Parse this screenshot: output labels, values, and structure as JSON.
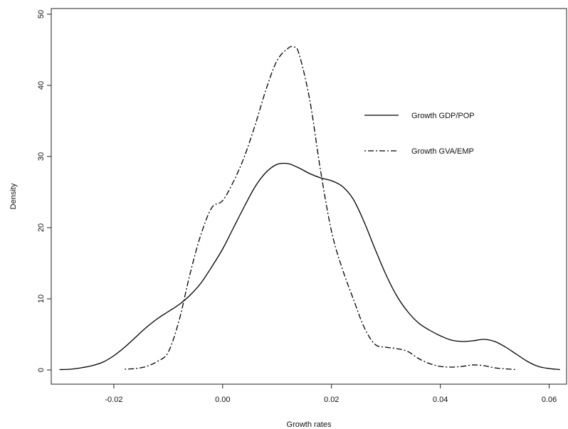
{
  "chart_data": {
    "type": "line",
    "title": "",
    "xlabel": "Growth rates",
    "ylabel": "Density",
    "xlim": [
      -0.0315,
      0.0632
    ],
    "ylim": [
      -2,
      50.8
    ],
    "x_ticks": [
      -0.02,
      0.0,
      0.02,
      0.04,
      0.06
    ],
    "x_tick_labels": [
      "-0.02",
      "0.00",
      "0.02",
      "0.04",
      "0.06"
    ],
    "y_ticks": [
      0,
      10,
      20,
      30,
      40,
      50
    ],
    "y_tick_labels": [
      "0",
      "10",
      "20",
      "30",
      "40",
      "50"
    ],
    "grid": false,
    "legend_position": "right",
    "series": [
      {
        "name": "Growth GDP/POP",
        "style": "solid",
        "color": "#000000",
        "x": [
          -0.03,
          -0.028,
          -0.026,
          -0.024,
          -0.022,
          -0.02,
          -0.018,
          -0.016,
          -0.014,
          -0.012,
          -0.01,
          -0.008,
          -0.006,
          -0.004,
          -0.002,
          0.0,
          0.002,
          0.004,
          0.006,
          0.008,
          0.01,
          0.012,
          0.014,
          0.016,
          0.018,
          0.02,
          0.022,
          0.024,
          0.026,
          0.028,
          0.03,
          0.032,
          0.034,
          0.036,
          0.038,
          0.04,
          0.042,
          0.044,
          0.046,
          0.048,
          0.05,
          0.052,
          0.054,
          0.056,
          0.058,
          0.06,
          0.062
        ],
        "y": [
          0.05,
          0.1,
          0.3,
          0.6,
          1.1,
          2.0,
          3.2,
          4.6,
          6.0,
          7.2,
          8.2,
          9.2,
          10.5,
          12.2,
          14.5,
          17.0,
          20.0,
          23.0,
          25.8,
          27.8,
          28.9,
          29.0,
          28.4,
          27.6,
          27.0,
          26.6,
          25.8,
          24.0,
          20.8,
          17.0,
          13.4,
          10.4,
          8.2,
          6.6,
          5.6,
          4.8,
          4.2,
          4.0,
          4.1,
          4.3,
          4.0,
          3.2,
          2.2,
          1.2,
          0.5,
          0.2,
          0.05
        ]
      },
      {
        "name": "Growth GVA/EMP",
        "style": "dotdash",
        "color": "#000000",
        "x": [
          -0.018,
          -0.016,
          -0.014,
          -0.012,
          -0.01,
          -0.008,
          -0.006,
          -0.004,
          -0.002,
          0.0,
          0.002,
          0.004,
          0.006,
          0.008,
          0.01,
          0.012,
          0.013,
          0.014,
          0.016,
          0.018,
          0.02,
          0.022,
          0.024,
          0.026,
          0.028,
          0.03,
          0.032,
          0.034,
          0.036,
          0.038,
          0.04,
          0.042,
          0.044,
          0.046,
          0.048,
          0.05,
          0.052,
          0.054
        ],
        "y": [
          0.1,
          0.2,
          0.5,
          1.2,
          2.5,
          7.0,
          13.5,
          19.0,
          22.8,
          23.8,
          26.5,
          30.0,
          34.5,
          39.5,
          43.5,
          45.2,
          45.4,
          44.5,
          38.0,
          28.0,
          19.5,
          14.2,
          10.0,
          6.0,
          3.6,
          3.2,
          3.0,
          2.6,
          1.6,
          0.9,
          0.5,
          0.4,
          0.5,
          0.7,
          0.6,
          0.3,
          0.15,
          0.05
        ]
      }
    ]
  }
}
